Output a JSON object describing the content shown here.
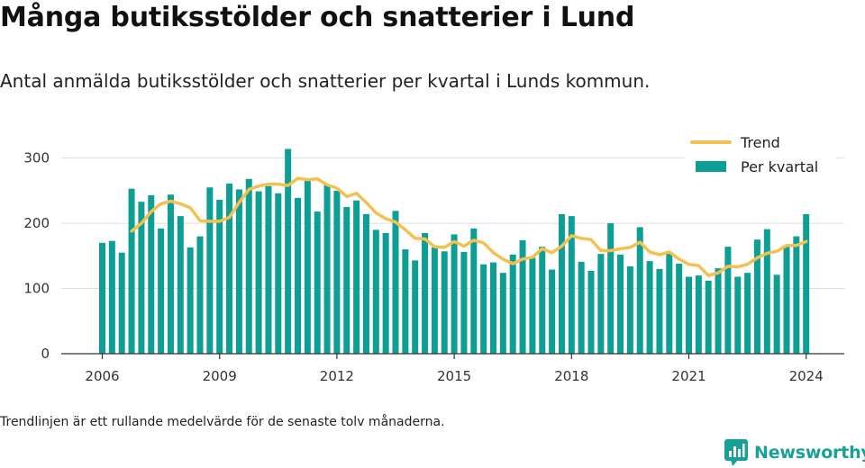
{
  "header": {
    "title": "Många butiksstölder och snatterier i Lund",
    "subtitle": "Antal anmälda butiksstölder och snatterier per kvartal i Lunds kommun."
  },
  "footer": {
    "note": "Trendlinjen är ett rullande medelvärde för de senaste tolv månaderna.",
    "brand": "Newsworthy",
    "brand_icon": "newsworthy-logo-icon"
  },
  "colors": {
    "bar": "#0d9e96",
    "trend": "#f4c150",
    "grid": "#dddddd",
    "axis": "#333333",
    "brand": "#1aa197"
  },
  "chart_data": {
    "type": "bar",
    "title": "Många butiksstölder och snatterier i Lund",
    "subtitle": "Antal anmälda butiksstölder och snatterier per kvartal i Lunds kommun.",
    "xlabel": "",
    "ylabel": "",
    "ylim": [
      0,
      350
    ],
    "yticks": [
      0,
      100,
      200,
      300
    ],
    "xticks": [
      "2006",
      "2009",
      "2012",
      "2015",
      "2018",
      "2021",
      "2024"
    ],
    "grid": true,
    "legend_position": "top-right",
    "legend": [
      "Trend",
      "Per kvartal"
    ],
    "categories": [
      "2006 Q1",
      "2006 Q2",
      "2006 Q3",
      "2006 Q4",
      "2007 Q1",
      "2007 Q2",
      "2007 Q3",
      "2007 Q4",
      "2008 Q1",
      "2008 Q2",
      "2008 Q3",
      "2008 Q4",
      "2009 Q1",
      "2009 Q2",
      "2009 Q3",
      "2009 Q4",
      "2010 Q1",
      "2010 Q2",
      "2010 Q3",
      "2010 Q4",
      "2011 Q1",
      "2011 Q2",
      "2011 Q3",
      "2011 Q4",
      "2012 Q1",
      "2012 Q2",
      "2012 Q3",
      "2012 Q4",
      "2013 Q1",
      "2013 Q2",
      "2013 Q3",
      "2013 Q4",
      "2014 Q1",
      "2014 Q2",
      "2014 Q3",
      "2014 Q4",
      "2015 Q1",
      "2015 Q2",
      "2015 Q3",
      "2015 Q4",
      "2016 Q1",
      "2016 Q2",
      "2016 Q3",
      "2016 Q4",
      "2017 Q1",
      "2017 Q2",
      "2017 Q3",
      "2017 Q4",
      "2018 Q1",
      "2018 Q2",
      "2018 Q3",
      "2018 Q4",
      "2019 Q1",
      "2019 Q2",
      "2019 Q3",
      "2019 Q4",
      "2020 Q1",
      "2020 Q2",
      "2020 Q3",
      "2020 Q4",
      "2021 Q1",
      "2021 Q2",
      "2021 Q3",
      "2021 Q4",
      "2022 Q1",
      "2022 Q2",
      "2022 Q3",
      "2022 Q4",
      "2023 Q1",
      "2023 Q2",
      "2023 Q3",
      "2023 Q4",
      "2024 Q1"
    ],
    "series": [
      {
        "name": "Per kvartal",
        "kind": "bar",
        "values": [
          170,
          173,
          155,
          253,
          233,
          243,
          192,
          244,
          211,
          163,
          180,
          255,
          236,
          261,
          252,
          268,
          249,
          257,
          246,
          314,
          239,
          266,
          218,
          260,
          250,
          225,
          235,
          214,
          190,
          185,
          219,
          160,
          143,
          185,
          163,
          157,
          183,
          156,
          192,
          137,
          140,
          124,
          152,
          174,
          147,
          164,
          129,
          214,
          211,
          141,
          127,
          153,
          200,
          152,
          134,
          194,
          142,
          130,
          155,
          138,
          118,
          120,
          112,
          131,
          164,
          118,
          124,
          175,
          191,
          121,
          165,
          180,
          214
        ]
      },
      {
        "name": "Trend",
        "kind": "line",
        "values": [
          null,
          null,
          null,
          188,
          200,
          218,
          230,
          234,
          230,
          224,
          204,
          203,
          203,
          209,
          232,
          252,
          257,
          260,
          260,
          258,
          269,
          267,
          268,
          259,
          254,
          241,
          246,
          232,
          216,
          207,
          202,
          190,
          177,
          176,
          164,
          163,
          172,
          165,
          174,
          170,
          155,
          145,
          138,
          145,
          148,
          161,
          155,
          165,
          181,
          177,
          175,
          158,
          158,
          161,
          163,
          171,
          156,
          152,
          156,
          145,
          137,
          135,
          120,
          124,
          134,
          133,
          137,
          147,
          154,
          157,
          166,
          166,
          172
        ]
      }
    ]
  }
}
